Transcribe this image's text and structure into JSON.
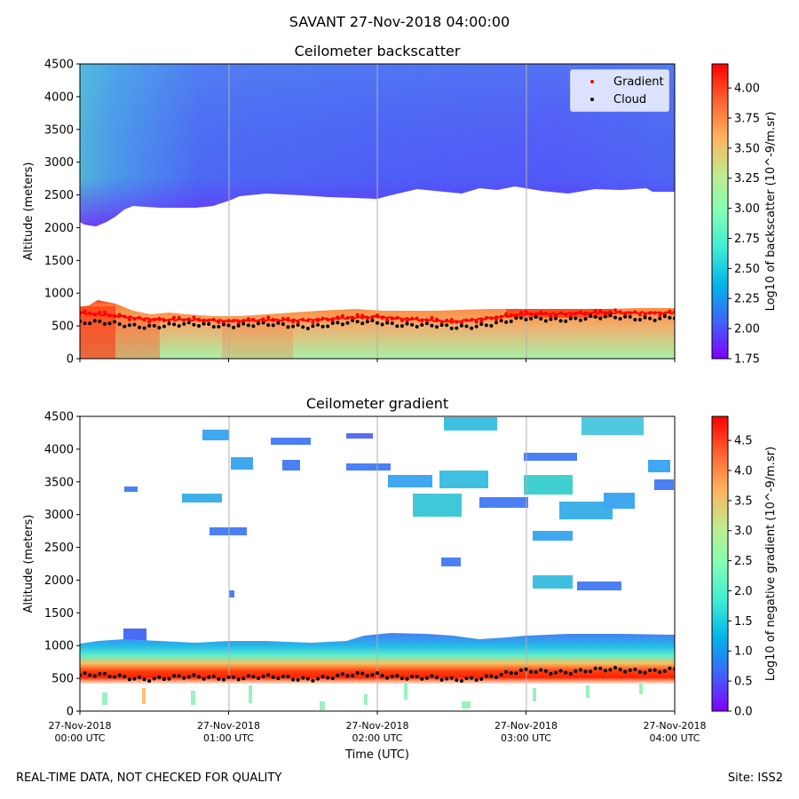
{
  "figure": {
    "suptitle": "SAVANT 27-Nov-2018 04:00:00",
    "footer_left": "REAL-TIME DATA, NOT CHECKED FOR QUALITY",
    "footer_right": "Site: ISS2",
    "xlabel": "Time (UTC)"
  },
  "chart_data": [
    {
      "type": "heatmap",
      "title": "Ceilometer backscatter",
      "ylabel": "Altitude (meters)",
      "ylim": [
        0,
        4500
      ],
      "yticks": [
        "0",
        "500",
        "1000",
        "1500",
        "2000",
        "2500",
        "3000",
        "3500",
        "4000",
        "4500"
      ],
      "xlim_hours": [
        0,
        4
      ],
      "xticks_hours": [
        0,
        1,
        2,
        3,
        4
      ],
      "colorbar": {
        "label": "Log10 of backscatter (10^-9/m.sr)",
        "range": [
          1.75,
          4.2
        ],
        "ticks": [
          "1.75",
          "2.00",
          "2.25",
          "2.50",
          "2.75",
          "3.00",
          "3.25",
          "3.50",
          "3.75",
          "4.00"
        ],
        "tick_values": [
          1.75,
          2.0,
          2.25,
          2.5,
          2.75,
          3.0,
          3.25,
          3.5,
          3.75,
          4.0
        ]
      },
      "legend": {
        "location": "upper right",
        "entries": [
          {
            "label": "Gradient",
            "color": "#ff0000"
          },
          {
            "label": "Cloud",
            "color": "#000000"
          }
        ]
      },
      "upper_layer_base_m": [
        [
          0,
          2050
        ],
        [
          0.25,
          2200
        ],
        [
          0.35,
          2450
        ],
        [
          1,
          2450
        ],
        [
          2,
          2420
        ],
        [
          3,
          2520
        ],
        [
          4,
          2550
        ]
      ],
      "gradient_height_m": [
        [
          0,
          700
        ],
        [
          0.5,
          600
        ],
        [
          1,
          580
        ],
        [
          1.5,
          590
        ],
        [
          2,
          640
        ],
        [
          2.5,
          560
        ],
        [
          3,
          680
        ],
        [
          3.5,
          700
        ],
        [
          4,
          700
        ]
      ],
      "cloud_height_m": [
        [
          0,
          550
        ],
        [
          0.5,
          500
        ],
        [
          1,
          520
        ],
        [
          1.5,
          500
        ],
        [
          2,
          560
        ],
        [
          2.5,
          470
        ],
        [
          3,
          600
        ],
        [
          3.5,
          620
        ],
        [
          4,
          630
        ]
      ]
    },
    {
      "type": "heatmap",
      "title": "Ceilometer gradient",
      "ylabel": "Altitude (meters)",
      "ylim": [
        0,
        4500
      ],
      "yticks": [
        "0",
        "500",
        "1000",
        "1500",
        "2000",
        "2500",
        "3000",
        "3500",
        "4000",
        "4500"
      ],
      "xlim_hours": [
        0,
        4
      ],
      "xticks_hours": [
        0,
        1,
        2,
        3,
        4
      ],
      "colorbar": {
        "label": "Log10 of negative gradient (10^-9/m.sr)",
        "range": [
          0,
          4.9
        ],
        "ticks": [
          "0.0",
          "0.5",
          "1.0",
          "1.5",
          "2.0",
          "2.5",
          "3.0",
          "3.5",
          "4.0",
          "4.5"
        ],
        "tick_values": [
          0,
          0.5,
          1.0,
          1.5,
          2.0,
          2.5,
          3.0,
          3.5,
          4.0,
          4.5
        ]
      },
      "gradient_layer_top_m": [
        [
          0,
          1050
        ],
        [
          1,
          1050
        ],
        [
          2,
          1100
        ],
        [
          2.5,
          1100
        ],
        [
          3,
          1150
        ],
        [
          4,
          1150
        ]
      ],
      "cloud_height_m": [
        [
          0,
          550
        ],
        [
          0.5,
          500
        ],
        [
          1,
          520
        ],
        [
          1.5,
          500
        ],
        [
          2,
          560
        ],
        [
          2.5,
          470
        ],
        [
          3,
          600
        ],
        [
          3.5,
          620
        ],
        [
          4,
          630
        ]
      ]
    }
  ],
  "xtick_labels": [
    {
      "date": "27-Nov-2018",
      "time": "00:00 UTC"
    },
    {
      "date": "27-Nov-2018",
      "time": "01:00 UTC"
    },
    {
      "date": "27-Nov-2018",
      "time": "02:00 UTC"
    },
    {
      "date": "27-Nov-2018",
      "time": "03:00 UTC"
    },
    {
      "date": "27-Nov-2018",
      "time": "04:00 UTC"
    }
  ]
}
